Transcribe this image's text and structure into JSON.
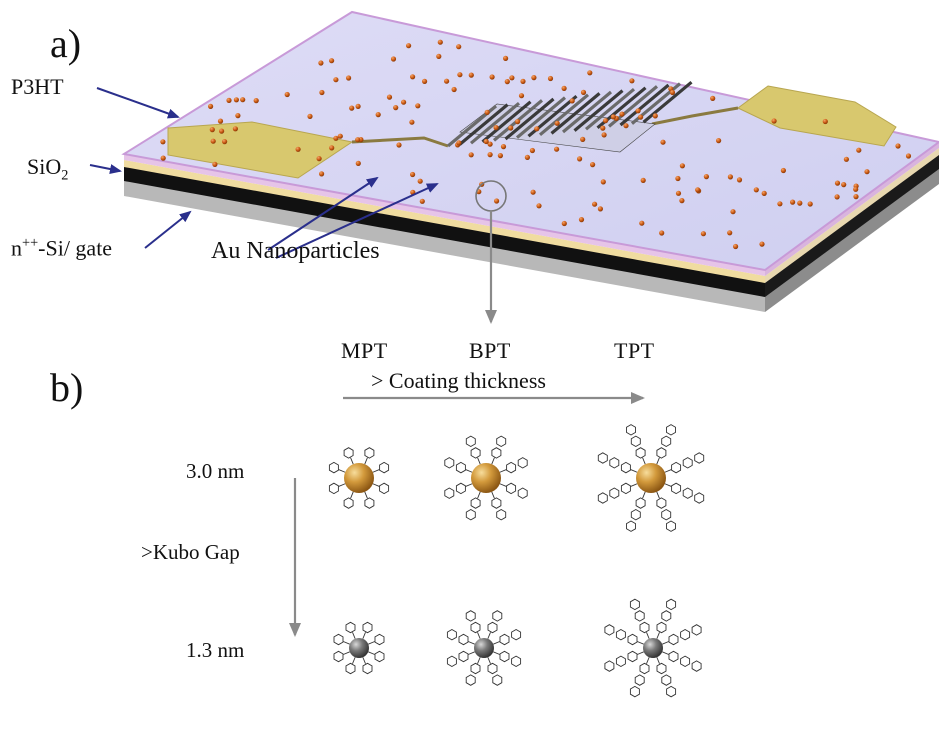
{
  "panel_a": {
    "label": "a)",
    "layers": {
      "p3ht": "P3HT",
      "sio2_main": "SiO",
      "sio2_sub": "2",
      "gate_sup": "++",
      "gate_prefix": "n",
      "gate_suffix": "-Si/ gate"
    },
    "nanoparticle_label": "Au Nanoparticles"
  },
  "panel_b": {
    "label": "b)",
    "columns": [
      "MPT",
      "BPT",
      "TPT"
    ],
    "coating_label": "> Coating thickness",
    "kubo_label": ">Kubo Gap",
    "rows": [
      "3.0 nm",
      "1.3 nm"
    ]
  },
  "colors": {
    "polymer": "#d6d6f2",
    "polymer_edge": "#c89ad8",
    "electrode": "#d8c86e",
    "nanoparticle": "#d0601c",
    "arrow_blue": "#2a2f8c",
    "gray_arrow": "#888888",
    "gold_core": "#c88a2c",
    "silver_core": "#6c6c6c"
  }
}
